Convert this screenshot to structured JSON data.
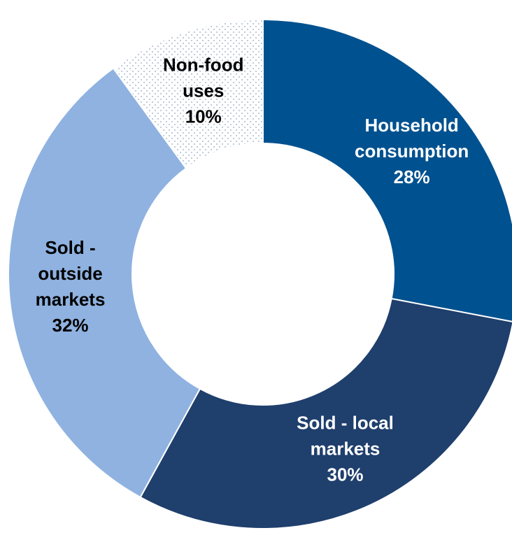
{
  "chart_data": {
    "type": "pie",
    "title": "",
    "categories": [
      "Household consumption",
      "Sold - local markets",
      "Sold - outside markets",
      "Non-food uses"
    ],
    "values": [
      28,
      30,
      32,
      10
    ],
    "slices": [
      {
        "name": "Household consumption",
        "value": 28,
        "percent_label": "28%",
        "label_lines": [
          "Household",
          "consumption",
          "28%"
        ],
        "color": "#00518f",
        "text_color": "#ffffff",
        "pattern": "solid"
      },
      {
        "name": "Sold - local markets",
        "value": 30,
        "percent_label": "30%",
        "label_lines": [
          "Sold - local",
          "markets",
          "30%"
        ],
        "color": "#1f3f6d",
        "text_color": "#ffffff",
        "pattern": "solid"
      },
      {
        "name": "Sold - outside markets",
        "value": 32,
        "percent_label": "32%",
        "label_lines": [
          "Sold -",
          "outside",
          "markets",
          "32%"
        ],
        "color": "#8fb2e0",
        "text_color": "#000000",
        "pattern": "solid"
      },
      {
        "name": "Non-food uses",
        "value": 10,
        "percent_label": "10%",
        "label_lines": [
          "Non-food",
          "uses",
          "10%"
        ],
        "color": "#ffffff",
        "text_color": "#000000",
        "pattern": "dotted"
      }
    ],
    "donut": true,
    "legend": "none"
  }
}
